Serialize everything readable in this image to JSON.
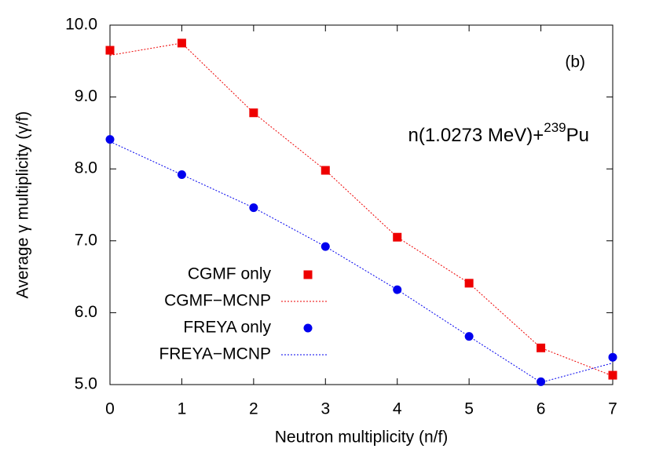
{
  "chart_data": {
    "type": "line",
    "x_label": "Neutron multiplicity (n/f)",
    "y_label": "Average γ multiplicity (γ/f)",
    "annotation_panel": "(b)",
    "annotation_reaction": {
      "text": "n(1.0273 MeV)+",
      "superscript": "239",
      "suffix": "Pu"
    },
    "x": [
      0,
      1,
      2,
      3,
      4,
      5,
      6,
      7
    ],
    "xlim": [
      0,
      7
    ],
    "xticks": [
      0,
      1,
      2,
      3,
      4,
      5,
      6,
      7
    ],
    "ylim": [
      5,
      10
    ],
    "yticks": [
      {
        "value": 5,
        "label": "5.0"
      },
      {
        "value": 6,
        "label": "6.0"
      },
      {
        "value": 7,
        "label": "7.0"
      },
      {
        "value": 8,
        "label": "8.0"
      },
      {
        "value": 9,
        "label": "9.0"
      },
      {
        "value": 10,
        "label": "10.0"
      }
    ],
    "grid": false,
    "legend": "lower-left",
    "series": [
      {
        "name": "CGMF only",
        "color": "#ee0000",
        "style": "markers",
        "marker": "square",
        "values": [
          9.65,
          9.75,
          8.78,
          7.98,
          7.05,
          6.41,
          5.51,
          5.13
        ]
      },
      {
        "name": "CGMF−MCNP",
        "color": "#ee0000",
        "style": "dashed",
        "values": [
          9.58,
          9.75,
          8.78,
          7.98,
          7.05,
          6.41,
          5.51,
          5.12
        ]
      },
      {
        "name": "FREYA only",
        "color": "#0000ee",
        "style": "markers",
        "marker": "circle",
        "values": [
          8.41,
          7.92,
          7.46,
          6.92,
          6.32,
          5.67,
          5.04,
          5.38
        ]
      },
      {
        "name": "FREYA−MCNP",
        "color": "#0000ee",
        "style": "dashed",
        "values": [
          8.38,
          7.92,
          7.46,
          6.92,
          6.32,
          5.67,
          5.03,
          5.3
        ]
      }
    ]
  }
}
